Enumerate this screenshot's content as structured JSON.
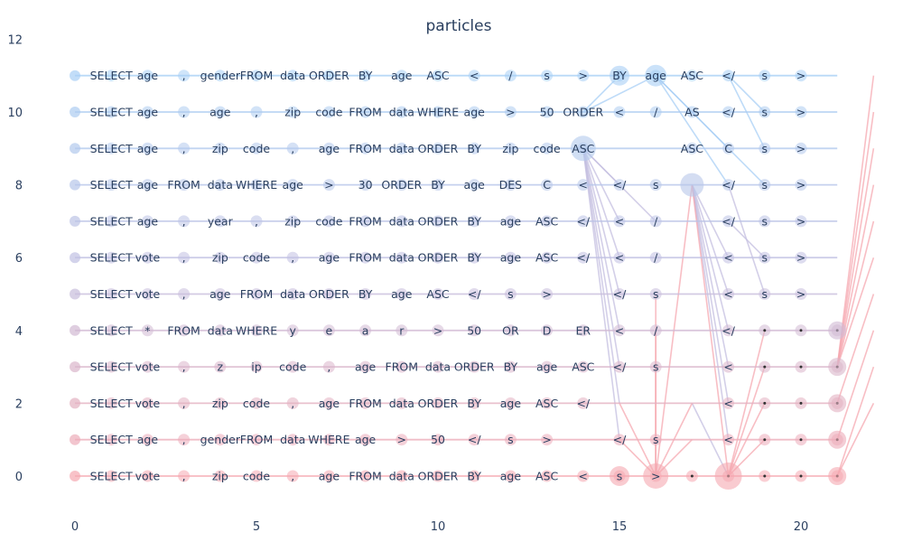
{
  "chart_data": {
    "type": "scatter",
    "title": "particles",
    "xlabel": "",
    "ylabel": "",
    "xlim": [
      -1,
      22.2
    ],
    "ylim": [
      -1,
      12
    ],
    "x_ticks": [
      0,
      5,
      10,
      15,
      20
    ],
    "y_ticks": [
      0,
      2,
      4,
      6,
      8,
      10,
      12
    ],
    "colors": {
      "top": "#a8cff5",
      "mid": "#c4bfe0",
      "bottom": "#f5a8b0",
      "text": "#2a3f5f"
    },
    "series": [
      {
        "y": 11,
        "tokens": [
          "SELECT",
          "age",
          ",",
          "gender",
          "FROM",
          "data",
          "ORDER",
          "BY",
          "age",
          "ASC",
          "<",
          "/",
          "s",
          ">",
          "BY",
          "age",
          "ASC",
          "</",
          "s",
          ">"
        ],
        "x": [
          1,
          2,
          3,
          4,
          5,
          6,
          7,
          8,
          9,
          10,
          11,
          12,
          13,
          14,
          15,
          16,
          17,
          18,
          19,
          20
        ]
      },
      {
        "y": 10,
        "tokens": [
          "SELECT",
          "age",
          ",",
          "age",
          ",",
          "zip",
          "code",
          "FROM",
          "data",
          "WHERE",
          "age",
          ">",
          "50",
          "ORDER",
          "<",
          "/",
          "AS",
          "</",
          "s",
          ">"
        ],
        "x": [
          1,
          2,
          3,
          4,
          5,
          6,
          7,
          8,
          9,
          10,
          11,
          12,
          13,
          14,
          15,
          16,
          17,
          18,
          19,
          20
        ]
      },
      {
        "y": 9,
        "tokens": [
          "SELECT",
          "age",
          ",",
          "zip",
          "code",
          ",",
          "age",
          "FROM",
          "data",
          "ORDER",
          "BY",
          "zip",
          "code",
          "ASC",
          "ASC",
          "C",
          "s",
          ">"
        ],
        "x": [
          1,
          2,
          3,
          4,
          5,
          6,
          7,
          8,
          9,
          10,
          11,
          12,
          13,
          14,
          17,
          18,
          19,
          20
        ]
      },
      {
        "y": 8,
        "tokens": [
          "SELECT",
          "age",
          "FROM",
          "data",
          "WHERE",
          "age",
          ">",
          "30",
          "ORDER",
          "BY",
          "age",
          "DES",
          "C",
          "<",
          "</",
          "s",
          "</",
          "s",
          ">"
        ],
        "x": [
          1,
          2,
          3,
          4,
          5,
          6,
          7,
          8,
          9,
          10,
          11,
          12,
          13,
          14,
          15,
          16,
          18,
          19,
          20
        ]
      },
      {
        "y": 7,
        "tokens": [
          "SELECT",
          "age",
          ",",
          "year",
          ",",
          "zip",
          "code",
          "FROM",
          "data",
          "ORDER",
          "BY",
          "age",
          "ASC",
          "</",
          "<",
          "/",
          "</",
          "s",
          ">"
        ],
        "x": [
          1,
          2,
          3,
          4,
          5,
          6,
          7,
          8,
          9,
          10,
          11,
          12,
          13,
          14,
          15,
          16,
          18,
          19,
          20
        ]
      },
      {
        "y": 6,
        "tokens": [
          "SELECT",
          "vote",
          ",",
          "zip",
          "code",
          ",",
          "age",
          "FROM",
          "data",
          "ORDER",
          "BY",
          "age",
          "ASC",
          "</",
          "<",
          "/",
          "<",
          "s",
          ">"
        ],
        "x": [
          1,
          2,
          3,
          4,
          5,
          6,
          7,
          8,
          9,
          10,
          11,
          12,
          13,
          14,
          15,
          16,
          18,
          19,
          20
        ]
      },
      {
        "y": 5,
        "tokens": [
          "SELECT",
          "vote",
          ",",
          "age",
          "FROM",
          "data",
          "ORDER",
          "BY",
          "age",
          "ASC",
          "</",
          "s",
          ">",
          "</",
          "s",
          "<",
          "s",
          ">"
        ],
        "x": [
          1,
          2,
          3,
          4,
          5,
          6,
          7,
          8,
          9,
          10,
          11,
          12,
          13,
          15,
          16,
          18,
          19,
          20
        ]
      },
      {
        "y": 4,
        "tokens": [
          "SELECT",
          "*",
          "FROM",
          "data",
          "WHERE",
          "y",
          "e",
          "a",
          "r",
          ">",
          "50",
          "OR",
          "D",
          "ER",
          "<",
          "/",
          "</"
        ],
        "x": [
          1,
          2,
          3,
          4,
          5,
          6,
          7,
          8,
          9,
          10,
          11,
          12,
          13,
          14,
          15,
          16,
          18
        ]
      },
      {
        "y": 3,
        "tokens": [
          "SELECT",
          "vote",
          ",",
          "z",
          "ip",
          "code",
          ",",
          "age",
          "FROM",
          "data",
          "ORDER",
          "BY",
          "age",
          "ASC",
          "</",
          "s",
          "<"
        ],
        "x": [
          1,
          2,
          3,
          4,
          5,
          6,
          7,
          8,
          9,
          10,
          11,
          12,
          13,
          14,
          15,
          16,
          18
        ]
      },
      {
        "y": 2,
        "tokens": [
          "SELECT",
          "vote",
          ",",
          "zip",
          "code",
          ",",
          "age",
          "FROM",
          "data",
          "ORDER",
          "BY",
          "age",
          "ASC",
          "</",
          "<"
        ],
        "x": [
          1,
          2,
          3,
          4,
          5,
          6,
          7,
          8,
          9,
          10,
          11,
          12,
          13,
          14,
          18
        ]
      },
      {
        "y": 1,
        "tokens": [
          "SELECT",
          "age",
          ",",
          "gender",
          "FROM",
          "data",
          "WHERE",
          "age",
          ">",
          "50",
          "</",
          "s",
          ">",
          "</",
          "s",
          "<"
        ],
        "x": [
          1,
          2,
          3,
          4,
          5,
          6,
          7,
          8,
          9,
          10,
          11,
          12,
          13,
          15,
          16,
          18
        ]
      },
      {
        "y": 0,
        "tokens": [
          "SELECT",
          "vote",
          ",",
          "zip",
          "code",
          ",",
          "age",
          "FROM",
          "data",
          "ORDER",
          "BY",
          "age",
          "ASC",
          "<",
          "s",
          ">"
        ],
        "x": [
          1,
          2,
          3,
          4,
          5,
          6,
          7,
          8,
          9,
          10,
          11,
          12,
          13,
          14,
          15,
          16
        ]
      }
    ],
    "big_points": [
      {
        "x": 15,
        "y": 11,
        "r": 11
      },
      {
        "x": 16,
        "y": 11,
        "r": 12
      },
      {
        "x": 14,
        "y": 9,
        "r": 14
      },
      {
        "x": 17,
        "y": 8,
        "r": 13
      },
      {
        "x": 15,
        "y": 0,
        "r": 11
      },
      {
        "x": 16,
        "y": 0,
        "r": 14
      },
      {
        "x": 18,
        "y": 0,
        "r": 15
      },
      {
        "x": 21,
        "y": 4,
        "r": 10
      },
      {
        "x": 21,
        "y": 3,
        "r": 10
      },
      {
        "x": 21,
        "y": 2,
        "r": 10
      },
      {
        "x": 21,
        "y": 1,
        "r": 10
      },
      {
        "x": 21,
        "y": 0,
        "r": 10
      }
    ],
    "links": [
      {
        "x1": 14,
        "y1": 10,
        "x2": 15,
        "y2": 11,
        "c": "top"
      },
      {
        "x1": 14,
        "y1": 10,
        "x2": 16,
        "y2": 11,
        "c": "top"
      },
      {
        "x1": 16,
        "y1": 11,
        "x2": 17,
        "y2": 10,
        "c": "top"
      },
      {
        "x1": 16,
        "y1": 11,
        "x2": 18,
        "y2": 9,
        "c": "top"
      },
      {
        "x1": 17,
        "y1": 10,
        "x2": 19,
        "y2": 8,
        "c": "top"
      },
      {
        "x1": 18,
        "y1": 11,
        "x2": 19,
        "y2": 10,
        "c": "top"
      },
      {
        "x1": 18,
        "y1": 11,
        "x2": 19,
        "y2": 9,
        "c": "top"
      },
      {
        "x1": 16,
        "y1": 11,
        "x2": 18,
        "y2": 8,
        "c": "top"
      },
      {
        "x1": 14,
        "y1": 9,
        "x2": 15,
        "y2": 8,
        "c": "mid"
      },
      {
        "x1": 14,
        "y1": 9,
        "x2": 15,
        "y2": 7,
        "c": "mid"
      },
      {
        "x1": 14,
        "y1": 9,
        "x2": 15,
        "y2": 6,
        "c": "mid"
      },
      {
        "x1": 14,
        "y1": 9,
        "x2": 15,
        "y2": 5,
        "c": "mid"
      },
      {
        "x1": 14,
        "y1": 9,
        "x2": 15,
        "y2": 4,
        "c": "mid"
      },
      {
        "x1": 14,
        "y1": 9,
        "x2": 15,
        "y2": 3,
        "c": "mid"
      },
      {
        "x1": 14,
        "y1": 9,
        "x2": 15,
        "y2": 2,
        "c": "mid"
      },
      {
        "x1": 14,
        "y1": 9,
        "x2": 15,
        "y2": 1,
        "c": "mid"
      },
      {
        "x1": 14,
        "y1": 9,
        "x2": 16,
        "y2": 7,
        "c": "mid"
      },
      {
        "x1": 17,
        "y1": 8,
        "x2": 18,
        "y2": 6,
        "c": "mid"
      },
      {
        "x1": 17,
        "y1": 8,
        "x2": 18,
        "y2": 5,
        "c": "mid"
      },
      {
        "x1": 17,
        "y1": 8,
        "x2": 18,
        "y2": 4,
        "c": "mid"
      },
      {
        "x1": 17,
        "y1": 8,
        "x2": 18,
        "y2": 3,
        "c": "mid"
      },
      {
        "x1": 17,
        "y1": 8,
        "x2": 18,
        "y2": 2,
        "c": "mid"
      },
      {
        "x1": 17,
        "y1": 8,
        "x2": 18,
        "y2": 1,
        "c": "mid"
      },
      {
        "x1": 18,
        "y1": 7,
        "x2": 19,
        "y2": 6,
        "c": "mid"
      },
      {
        "x1": 18,
        "y1": 8,
        "x2": 19,
        "y2": 5,
        "c": "mid"
      },
      {
        "x1": 17,
        "y1": 2,
        "x2": 18,
        "y2": 0,
        "c": "mid"
      },
      {
        "x1": 16,
        "y1": 0,
        "x2": 17,
        "y2": 8,
        "c": "bottom"
      },
      {
        "x1": 16,
        "y1": 0,
        "x2": 16,
        "y2": 5,
        "c": "bottom"
      },
      {
        "x1": 16,
        "y1": 0,
        "x2": 16,
        "y2": 4,
        "c": "bottom"
      },
      {
        "x1": 16,
        "y1": 0,
        "x2": 16,
        "y2": 3,
        "c": "bottom"
      },
      {
        "x1": 16,
        "y1": 0,
        "x2": 17,
        "y2": 2,
        "c": "bottom"
      },
      {
        "x1": 16,
        "y1": 0,
        "x2": 15,
        "y2": 2,
        "c": "bottom"
      },
      {
        "x1": 16,
        "y1": 0,
        "x2": 15,
        "y2": 1,
        "c": "bottom"
      },
      {
        "x1": 16,
        "y1": 0,
        "x2": 17,
        "y2": 1,
        "c": "bottom"
      },
      {
        "x1": 18,
        "y1": 0,
        "x2": 17,
        "y2": 8,
        "c": "bottom"
      },
      {
        "x1": 18,
        "y1": 0,
        "x2": 19,
        "y2": 4,
        "c": "bottom"
      },
      {
        "x1": 18,
        "y1": 0,
        "x2": 19,
        "y2": 3,
        "c": "bottom"
      },
      {
        "x1": 18,
        "y1": 0,
        "x2": 19,
        "y2": 2,
        "c": "bottom"
      },
      {
        "x1": 18,
        "y1": 0,
        "x2": 19,
        "y2": 1,
        "c": "bottom"
      },
      {
        "x1": 21,
        "y1": 3,
        "x2": 22,
        "y2": 11,
        "c": "bottom"
      },
      {
        "x1": 21,
        "y1": 3,
        "x2": 22,
        "y2": 10,
        "c": "bottom"
      },
      {
        "x1": 21,
        "y1": 3,
        "x2": 22,
        "y2": 9,
        "c": "bottom"
      },
      {
        "x1": 21,
        "y1": 3,
        "x2": 22,
        "y2": 8,
        "c": "bottom"
      },
      {
        "x1": 21,
        "y1": 3,
        "x2": 22,
        "y2": 7,
        "c": "bottom"
      },
      {
        "x1": 21,
        "y1": 3,
        "x2": 22,
        "y2": 6,
        "c": "bottom"
      },
      {
        "x1": 21,
        "y1": 2,
        "x2": 22,
        "y2": 5,
        "c": "bottom"
      },
      {
        "x1": 21,
        "y1": 1,
        "x2": 22,
        "y2": 4,
        "c": "bottom"
      },
      {
        "x1": 21,
        "y1": 0,
        "x2": 22,
        "y2": 3,
        "c": "bottom"
      },
      {
        "x1": 21,
        "y1": 0,
        "x2": 22,
        "y2": 2,
        "c": "bottom"
      }
    ]
  }
}
